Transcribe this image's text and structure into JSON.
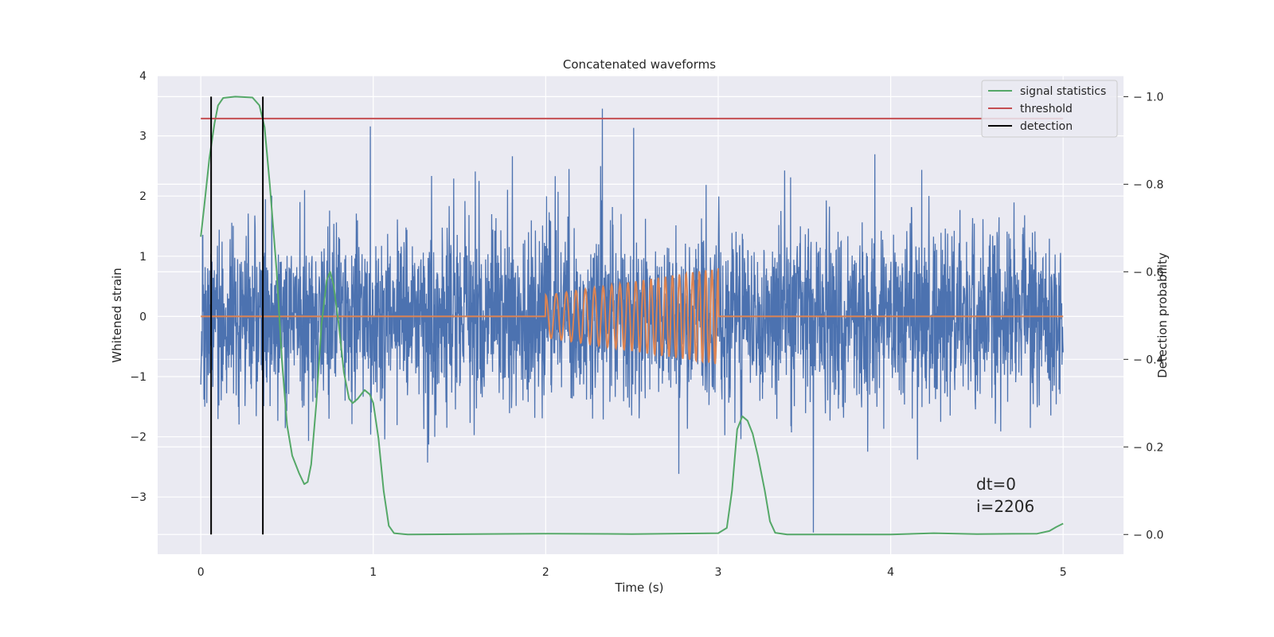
{
  "chart_data": {
    "type": "line",
    "title": "Concatenated waveforms",
    "xlabel": "Time (s)",
    "ylabel_left": "Whitened strain",
    "ylabel_right": "Detection probability",
    "xlim": [
      -0.25,
      5.35
    ],
    "ylim_left": [
      -3.95,
      4.0
    ],
    "ylim_right": [
      -0.045,
      1.048
    ],
    "xticks": [
      0,
      1,
      2,
      3,
      4,
      5
    ],
    "yticks_left": [
      -3,
      -2,
      -1,
      0,
      1,
      2,
      3,
      4
    ],
    "yticks_right": [
      0.0,
      0.2,
      0.4,
      0.6,
      0.8,
      1.0
    ],
    "grid": true,
    "legend": {
      "placement": "top-right",
      "entries": [
        {
          "label": "signal statistics",
          "color": "#55a868"
        },
        {
          "label": "threshold",
          "color": "#c44e52"
        },
        {
          "label": "detection",
          "color": "#000000"
        }
      ]
    },
    "annotations": [
      "dt=0",
      "i=2206"
    ],
    "series": [
      {
        "name": "strain",
        "axis": "left",
        "color": "#4c72b0",
        "kind": "noise",
        "x_range": [
          0,
          5
        ],
        "amplitude_std": 0.75,
        "peak_max": 3.65,
        "peak_min": -3.65
      },
      {
        "name": "waveform",
        "axis": "left",
        "color": "#dd8452",
        "kind": "chirp",
        "x_range": [
          0,
          5
        ],
        "active_range": [
          2,
          3
        ],
        "start_amplitude": 0.35,
        "end_amplitude": 0.8
      },
      {
        "name": "signal statistics",
        "axis": "right",
        "color": "#55a868",
        "points": [
          [
            0,
            0.68
          ],
          [
            0.02,
            0.75
          ],
          [
            0.05,
            0.86
          ],
          [
            0.08,
            0.94
          ],
          [
            0.1,
            0.98
          ],
          [
            0.13,
            0.997
          ],
          [
            0.2,
            1.0
          ],
          [
            0.3,
            0.998
          ],
          [
            0.34,
            0.98
          ],
          [
            0.37,
            0.93
          ],
          [
            0.4,
            0.8
          ],
          [
            0.44,
            0.6
          ],
          [
            0.47,
            0.4
          ],
          [
            0.5,
            0.25
          ],
          [
            0.53,
            0.18
          ],
          [
            0.57,
            0.14
          ],
          [
            0.6,
            0.115
          ],
          [
            0.62,
            0.12
          ],
          [
            0.64,
            0.16
          ],
          [
            0.67,
            0.3
          ],
          [
            0.7,
            0.48
          ],
          [
            0.73,
            0.58
          ],
          [
            0.75,
            0.6
          ],
          [
            0.77,
            0.57
          ],
          [
            0.8,
            0.48
          ],
          [
            0.83,
            0.37
          ],
          [
            0.86,
            0.31
          ],
          [
            0.88,
            0.3
          ],
          [
            0.91,
            0.31
          ],
          [
            0.95,
            0.33
          ],
          [
            0.98,
            0.32
          ],
          [
            1.0,
            0.3
          ],
          [
            1.03,
            0.22
          ],
          [
            1.06,
            0.1
          ],
          [
            1.09,
            0.02
          ],
          [
            1.12,
            0.003
          ],
          [
            1.2,
            0.0
          ],
          [
            2.0,
            0.002
          ],
          [
            2.5,
            0.001
          ],
          [
            3.0,
            0.003
          ],
          [
            3.05,
            0.015
          ],
          [
            3.08,
            0.1
          ],
          [
            3.11,
            0.24
          ],
          [
            3.14,
            0.27
          ],
          [
            3.17,
            0.26
          ],
          [
            3.2,
            0.23
          ],
          [
            3.23,
            0.18
          ],
          [
            3.27,
            0.1
          ],
          [
            3.3,
            0.03
          ],
          [
            3.33,
            0.004
          ],
          [
            3.4,
            0.0
          ],
          [
            4.0,
            0.0
          ],
          [
            4.25,
            0.003
          ],
          [
            4.5,
            0.001
          ],
          [
            4.85,
            0.002
          ],
          [
            4.92,
            0.008
          ],
          [
            4.96,
            0.017
          ],
          [
            5.0,
            0.025
          ]
        ]
      },
      {
        "name": "threshold",
        "axis": "right",
        "color": "#c44e52",
        "points": [
          [
            0,
            0.95
          ],
          [
            5,
            0.95
          ]
        ]
      },
      {
        "name": "detection",
        "axis": "right",
        "color": "#000000",
        "kind": "vlines",
        "x": [
          0.06,
          0.36
        ],
        "y_range": [
          0.0,
          1.0
        ]
      }
    ]
  }
}
